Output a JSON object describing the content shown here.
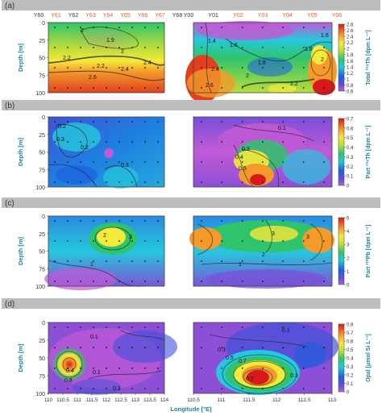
{
  "figure": {
    "panel_labels": [
      "(a)",
      "(b)",
      "(c)",
      "(d)"
    ],
    "highlight_color": "#e2632a",
    "text_color": "#333333",
    "label_color": "#1f7fa6",
    "bar_color": "#bdbdbd"
  },
  "top_axes": {
    "left_stations": [
      {
        "label": "Y60",
        "highlight": false
      },
      {
        "label": "Y61",
        "highlight": true
      },
      {
        "label": "Y62",
        "highlight": false
      },
      {
        "label": "Y63",
        "highlight": true
      },
      {
        "label": "Y64",
        "highlight": true
      },
      {
        "label": "Y65",
        "highlight": true
      },
      {
        "label": "Y66",
        "highlight": true
      },
      {
        "label": "Y67",
        "highlight": true
      },
      {
        "label": "Y68",
        "highlight": false
      }
    ],
    "right_stations": [
      {
        "label": "Y00",
        "highlight": false
      },
      {
        "label": "Y01",
        "highlight": false
      },
      {
        "label": "Y02",
        "highlight": true
      },
      {
        "label": "Y03",
        "highlight": true
      },
      {
        "label": "Y04",
        "highlight": true
      },
      {
        "label": "Y05",
        "highlight": true
      },
      {
        "label": "Y06",
        "highlight": true
      }
    ]
  },
  "chart_data": [
    {
      "type": "heatmap",
      "panel": "(a)",
      "ylabel": "Depth [m]",
      "yticks": [
        0,
        25,
        50,
        75,
        100
      ],
      "ylim": [
        0,
        100
      ],
      "colorbar_label": "Total ²³⁴Th [dpm L⁻¹]",
      "colorbar_ticks": [
        "0.6",
        "0.8",
        "1",
        "1.2",
        "1.4",
        "1.6",
        "1.8",
        "2",
        "2.2",
        "2.4",
        "2.6",
        "2.8"
      ],
      "range": [
        0.6,
        2.8
      ],
      "left_contour_labels": [
        "2",
        "1.9",
        "2",
        "2.2",
        "2.4",
        "2.2",
        "2.4",
        "2.6"
      ],
      "right_contour_labels": [
        "1.4",
        "1.6",
        "1.8",
        "2",
        "2.2",
        "2.4",
        "2.6",
        "1.8",
        "1.6",
        "2"
      ]
    },
    {
      "type": "heatmap",
      "panel": "(b)",
      "ylabel": "Depth [m]",
      "yticks": [
        0,
        25,
        50,
        75,
        100
      ],
      "ylim": [
        0,
        100
      ],
      "colorbar_label": "Part ²³⁴Th [dpm L⁻¹]",
      "colorbar_ticks": [
        "0",
        "0.1",
        "0.2",
        "0.3",
        "0.4",
        "0.5",
        "0.6",
        "0.7"
      ],
      "range": [
        0,
        0.7
      ],
      "left_contour_labels": [
        "0.2",
        "0.3",
        "0.2",
        "0.3"
      ],
      "right_contour_labels": [
        "0.1",
        "0.3",
        "0.4",
        "0.5"
      ]
    },
    {
      "type": "heatmap",
      "panel": "(c)",
      "ylabel": "Depth [m]",
      "yticks": [
        0,
        25,
        50,
        75,
        100
      ],
      "ylim": [
        0,
        100
      ],
      "colorbar_label": "Part ²¹⁰Pb [dpm L⁻¹]",
      "colorbar_ticks": [
        "0",
        "1",
        "2",
        "3",
        "4",
        "5"
      ],
      "range": [
        0,
        5
      ],
      "left_contour_labels": [
        "2",
        "3",
        "1"
      ],
      "right_contour_labels": [
        "3",
        "3",
        "2",
        "1"
      ]
    },
    {
      "type": "heatmap",
      "panel": "(d)",
      "ylabel": "Depth [m]",
      "yticks": [
        0,
        25,
        50,
        75,
        100
      ],
      "ylim": [
        0,
        100
      ],
      "colorbar_label": "Opal [μmol Si L⁻¹]",
      "colorbar_ticks": [
        "0",
        "0.1",
        "0.2",
        "0.3",
        "0.4",
        "0.5",
        "0.6",
        "0.7",
        "0.8"
      ],
      "range": [
        0,
        0.8
      ],
      "xlabel": "Longitude [°E]",
      "left_xticks": [
        "110",
        "110.5",
        "111",
        "111.5",
        "112",
        "112.5",
        "113",
        "113.5",
        "114"
      ],
      "left_xlim": [
        110,
        114
      ],
      "right_xticks": [
        "110.5",
        "111",
        "111.5",
        "112",
        "112.5",
        "113"
      ],
      "right_xlim": [
        110.5,
        113
      ],
      "left_contour_labels": [
        "0.1",
        "0.4",
        "0.8",
        "0.1",
        "0.1"
      ],
      "right_contour_labels": [
        "0.1",
        "0.3",
        "0.5",
        "0.7",
        "0.7",
        "0.3"
      ]
    }
  ]
}
